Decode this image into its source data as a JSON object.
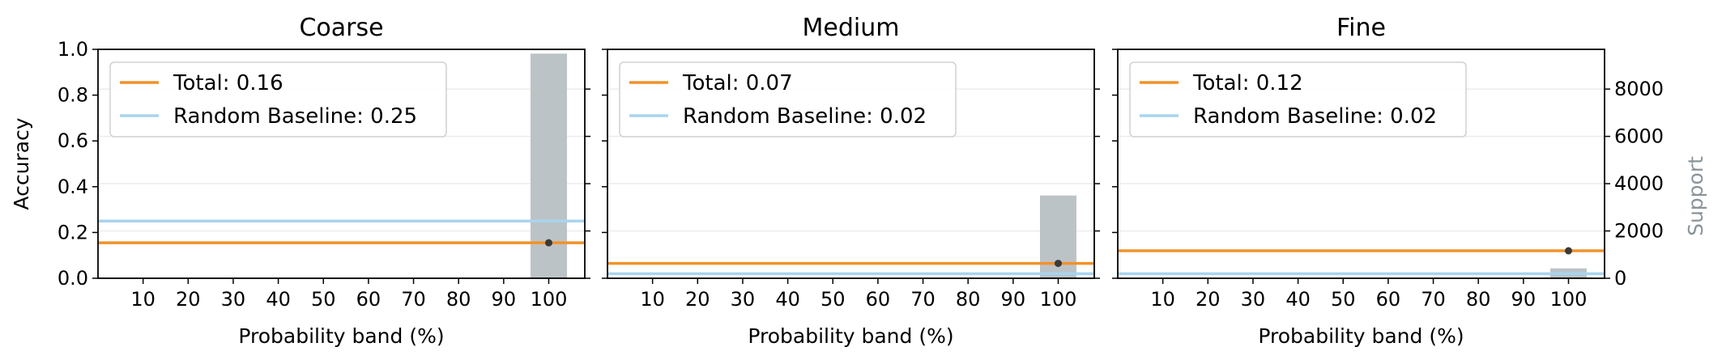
{
  "colors": {
    "total": "#f0922a",
    "baseline": "#a9d4ee",
    "support_bar": "#bcc3c7",
    "point": "#3a3a3a",
    "support_label": "#8a9499",
    "grid": "#ececec"
  },
  "chart_data": [
    {
      "type": "line",
      "title": "Coarse",
      "xlabel": "Probability band (%)",
      "ylabel": "Accuracy",
      "xticks": [
        "10",
        "20",
        "30",
        "40",
        "50",
        "60",
        "70",
        "80",
        "90",
        "100"
      ],
      "ylim": [
        0,
        1
      ],
      "yticks": [
        "0.0",
        "0.2",
        "0.4",
        "0.6",
        "0.8",
        "1.0"
      ],
      "legend": [
        "Total: 0.16",
        "Random Baseline: 0.25"
      ],
      "legend_position": "top-left",
      "total": 0.155,
      "baseline": 0.25,
      "points": [
        {
          "x": 100,
          "y": 0.155
        }
      ],
      "support": [
        {
          "x": 100,
          "count": 9500
        }
      ],
      "support_lim": [
        0,
        9680
      ],
      "grid": true
    },
    {
      "type": "line",
      "title": "Medium",
      "xlabel": "Probability band (%)",
      "xticks": [
        "10",
        "20",
        "30",
        "40",
        "50",
        "60",
        "70",
        "80",
        "90",
        "100"
      ],
      "ylim": [
        0,
        1
      ],
      "legend": [
        "Total: 0.07",
        "Random Baseline: 0.02"
      ],
      "legend_position": "top-left",
      "total": 0.065,
      "baseline": 0.02,
      "points": [
        {
          "x": 100,
          "y": 0.065
        }
      ],
      "support": [
        {
          "x": 100,
          "count": 3500
        }
      ],
      "support_lim": [
        0,
        9680
      ],
      "grid": true
    },
    {
      "type": "line",
      "title": "Fine",
      "xlabel": "Probability band (%)",
      "xticks": [
        "10",
        "20",
        "30",
        "40",
        "50",
        "60",
        "70",
        "80",
        "90",
        "100"
      ],
      "ylim": [
        0,
        1
      ],
      "legend": [
        "Total: 0.12",
        "Random Baseline: 0.02"
      ],
      "legend_position": "top-left",
      "total": 0.12,
      "baseline": 0.02,
      "points": [
        {
          "x": 100,
          "y": 0.12
        }
      ],
      "support": [
        {
          "x": 100,
          "count": 420
        }
      ],
      "support_lim": [
        0,
        9680
      ],
      "support_label": "Support",
      "support_ticks": [
        "0",
        "2000",
        "4000",
        "6000",
        "8000"
      ],
      "grid": true
    }
  ]
}
